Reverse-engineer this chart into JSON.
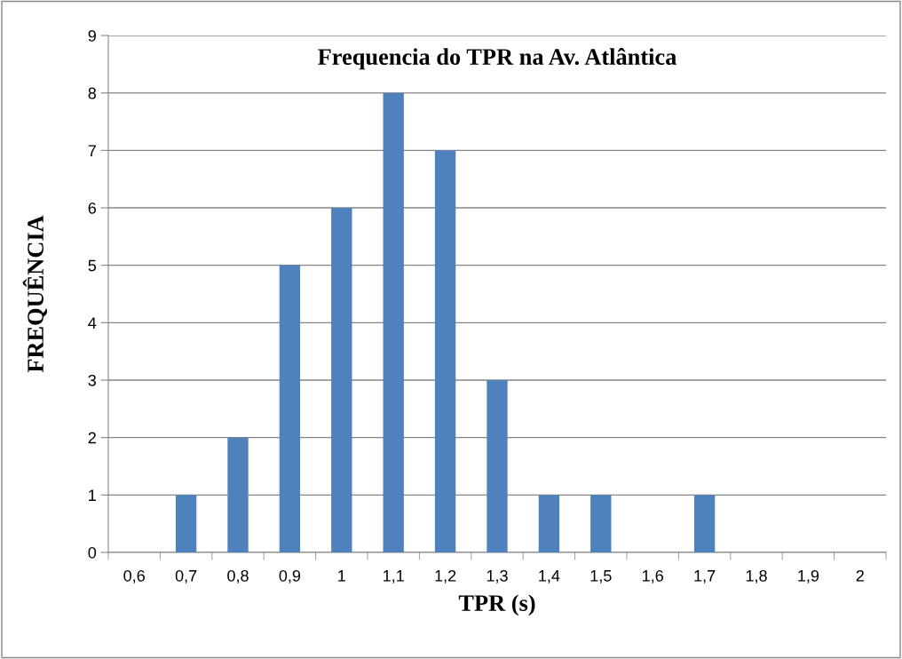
{
  "chart_data": {
    "type": "bar",
    "title": "Frequencia do TPR na Av. Atlântica",
    "xlabel": "TPR (s)",
    "ylabel": "FREQUÊNCIA",
    "categories": [
      "0,6",
      "0,7",
      "0,8",
      "0,9",
      "1",
      "1,1",
      "1,2",
      "1,3",
      "1,4",
      "1,5",
      "1,6",
      "1,7",
      "1,8",
      "1,9",
      "2"
    ],
    "values": [
      0,
      1,
      2,
      5,
      6,
      8,
      7,
      3,
      1,
      1,
      0,
      1,
      0,
      0,
      0
    ],
    "color": "#4f81bd",
    "ylim": [
      0,
      9
    ],
    "yticks": [
      0,
      1,
      2,
      3,
      4,
      5,
      6,
      7,
      8,
      9
    ],
    "grid": "y",
    "legend": false
  }
}
